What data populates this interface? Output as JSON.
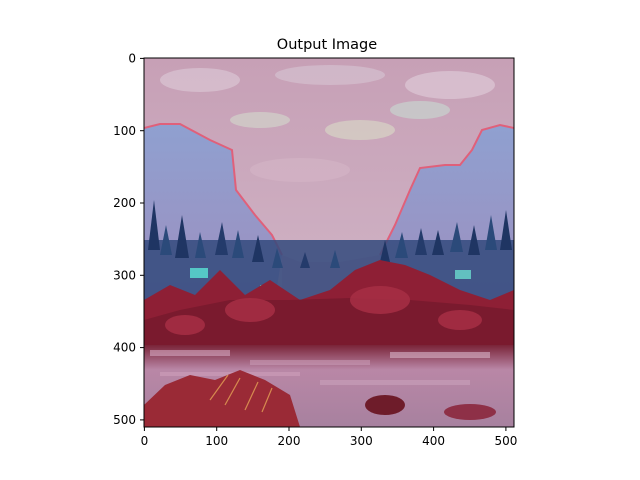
{
  "figure": {
    "title": "Output Image"
  },
  "axes": {
    "x_ticks": [
      "0",
      "100",
      "200",
      "300",
      "400",
      "500"
    ],
    "y_ticks": [
      "0",
      "100",
      "200",
      "300",
      "400",
      "500"
    ],
    "xlim": [
      0,
      512
    ],
    "ylim": [
      512,
      0
    ]
  },
  "image": {
    "description_icon": "stylized-landscape-image",
    "palette": {
      "sky": "#c79bb3",
      "sky_highlight": "#d8c4d2",
      "cliff": "#8f96c8",
      "cliff_edge": "#e0607a",
      "trees_blue": "#2b4a7a",
      "trees_teal": "#4fb6b8",
      "forest_red": "#8e1f35",
      "river": "#b58aa6",
      "foreground": "#9a2a36",
      "frame": "#000000"
    }
  }
}
